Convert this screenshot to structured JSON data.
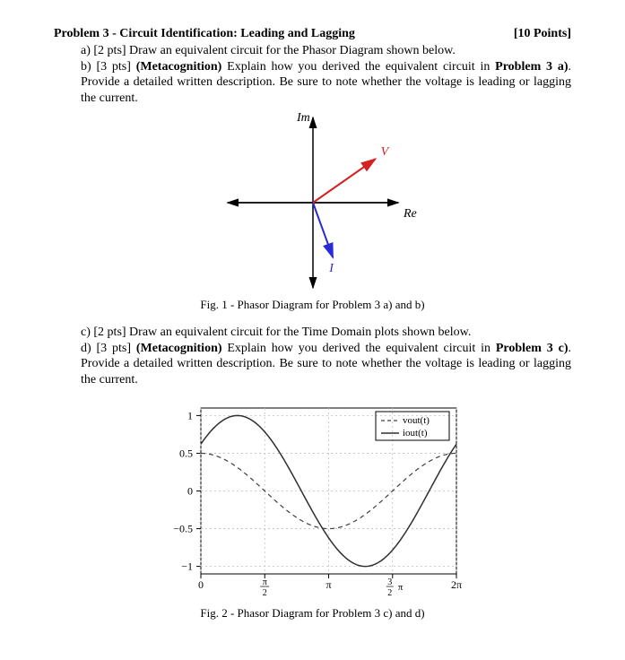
{
  "header": {
    "title": "Problem 3 - Circuit Identification: Leading and Lagging",
    "points": "[10 Points]"
  },
  "parts": {
    "a": "[2 pts] Draw an equivalent circuit for the Phasor Diagram shown below.",
    "b_prefix": "[3 pts] ",
    "b_bold": "(Metacognition)",
    "b_rest": " Explain how you derived the equivalent circuit in ",
    "b_ref_bold": "Problem 3 a)",
    "b_tail": ". Provide a detailed written description. Be sure to note whether the voltage is leading or lagging the current.",
    "c": "[2 pts] Draw an equivalent circuit for the Time Domain plots shown below.",
    "d_prefix": "[3 pts] ",
    "d_bold": "(Metacognition)",
    "d_rest": " Explain how you derived the equivalent circuit in ",
    "d_ref_bold": "Problem 3 c)",
    "d_tail": ". Provide a detailed written description. Be sure to note whether the voltage is leading or lagging the current."
  },
  "fig1": {
    "caption": "Fig. 1 - Phasor Diagram for Problem 3 a) and b)",
    "axes": {
      "im": "Im",
      "re": "Re"
    },
    "phasors": {
      "V": {
        "label": "V",
        "angle_deg": 35,
        "length": 85,
        "color": "#d42020"
      },
      "I": {
        "label": "I",
        "angle_deg": -70,
        "length": 65,
        "color": "#2a2ad6"
      }
    },
    "axis_color": "#000000",
    "background": "#ffffff"
  },
  "fig2": {
    "caption": "Fig. 2 - Phasor Diagram for Problem 3 c) and d)",
    "legend": {
      "vout": "vout(t)",
      "iout": "iout(t)"
    },
    "series": {
      "vout": {
        "color": "#404040",
        "dash": "5,4",
        "width": 1.2,
        "amplitude": 0.5,
        "phase": 0
      },
      "iout": {
        "color": "#303030",
        "dash": "none",
        "width": 1.5,
        "amplitude": 1.0,
        "phase": 0.9
      }
    },
    "xticks": [
      "0",
      "π/2",
      "π",
      "3π/2",
      "2π"
    ],
    "yticks": [
      "1",
      "0.5",
      "0",
      "−0.5",
      "−1"
    ],
    "xlim": [
      0,
      6.2832
    ],
    "ylim": [
      -1.1,
      1.1
    ],
    "grid_color": "#bfbfbf",
    "background": "#ffffff"
  }
}
